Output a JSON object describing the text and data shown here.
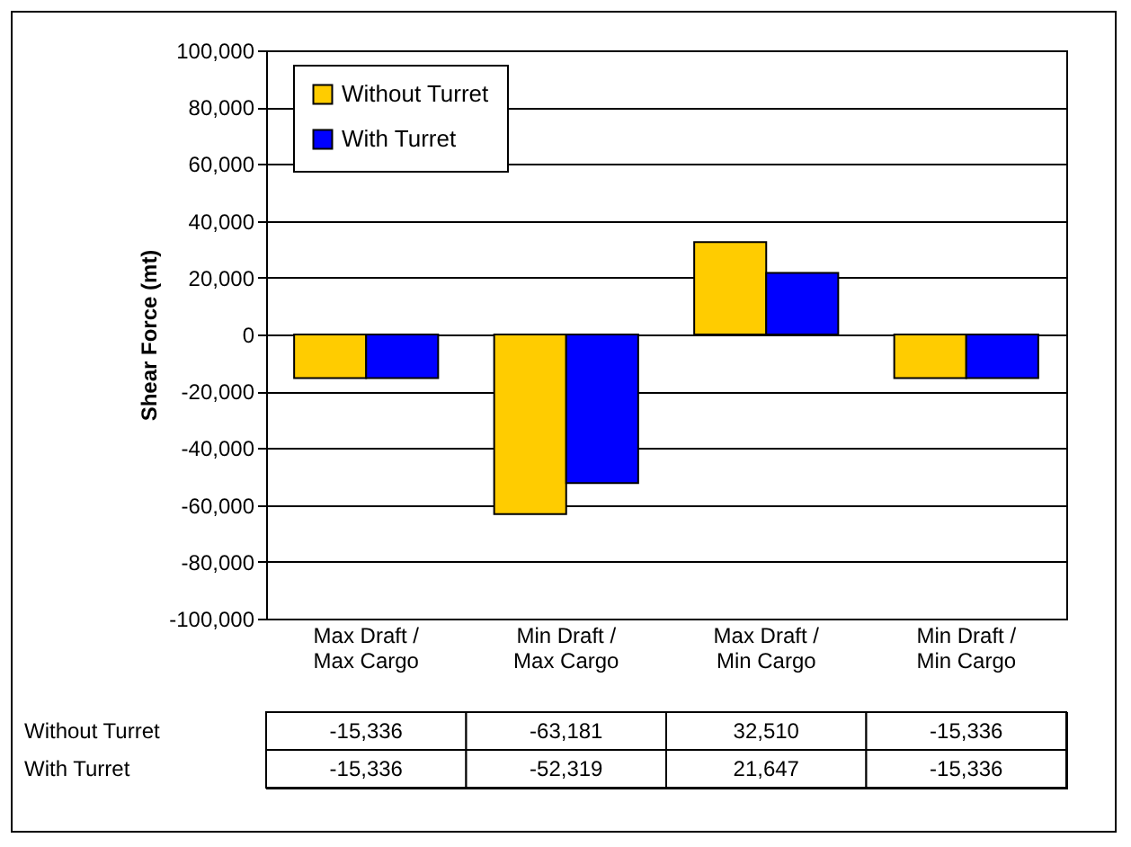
{
  "chart_data": {
    "type": "bar",
    "ylabel": "Shear Force (mt)",
    "categories": [
      "Max Draft / Max Cargo",
      "Min Draft / Max Cargo",
      "Max Draft / Min Cargo",
      "Min Draft / Min Cargo"
    ],
    "series": [
      {
        "name": "Without Turret",
        "color": "#ffcc00",
        "values": [
          -15336,
          -63181,
          32510,
          -15336
        ],
        "value_labels": [
          "-15,336",
          "-63,181",
          "32,510",
          "-15,336"
        ]
      },
      {
        "name": "With Turret",
        "color": "#0000ff",
        "values": [
          -15336,
          -52319,
          21647,
          -15336
        ],
        "value_labels": [
          "-15,336",
          "-52,319",
          "21,647",
          "-15,336"
        ]
      }
    ],
    "ylim": [
      -100000,
      100000
    ],
    "yticks": [
      {
        "value": -100000,
        "label": "-100,000"
      },
      {
        "value": -80000,
        "label": "-80,000"
      },
      {
        "value": -60000,
        "label": "-60,000"
      },
      {
        "value": -40000,
        "label": "-40,000"
      },
      {
        "value": -20000,
        "label": "-20,000"
      },
      0,
      {
        "value": 20000,
        "label": "20,000"
      },
      {
        "value": 40000,
        "label": "40,000"
      },
      {
        "value": 60000,
        "label": "60,000"
      },
      {
        "value": 80000,
        "label": "80,000"
      },
      {
        "value": 100000,
        "label": "100,000"
      }
    ],
    "grid": "y",
    "legend": "top left"
  }
}
